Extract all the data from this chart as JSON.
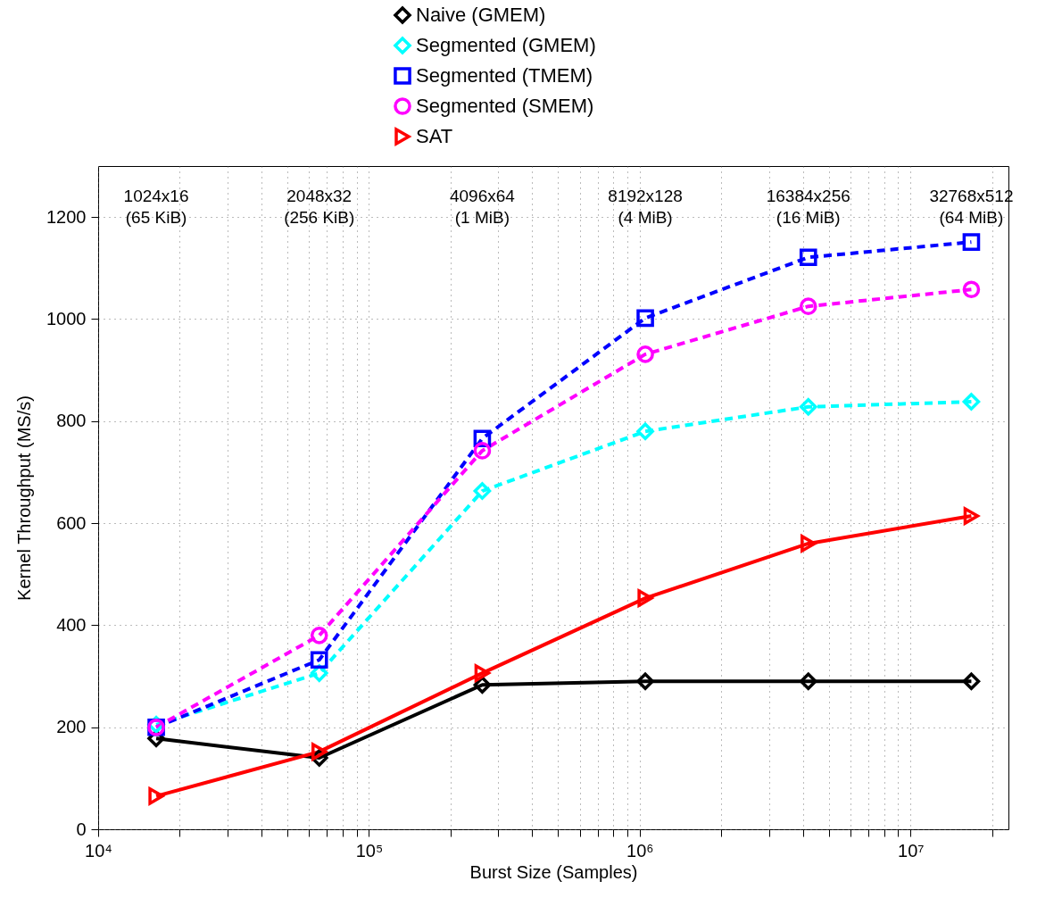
{
  "chart_data": {
    "type": "line",
    "xlabel": "Burst Size (Samples)",
    "ylabel": "Kernel Throughput (MS/s)",
    "x": [
      16384,
      65536,
      262144,
      1048576,
      4194304,
      16777216
    ],
    "series": [
      {
        "name": "Naive (GMEM)",
        "color": "#000000",
        "marker": "diamond",
        "line_style": "solid",
        "values": [
          178,
          140,
          283,
          290,
          290,
          290
        ]
      },
      {
        "name": "Segmented (GMEM)",
        "color": "#00ffff",
        "marker": "diamond",
        "line_style": "dashed",
        "values": [
          205,
          306,
          663,
          780,
          828,
          838
        ]
      },
      {
        "name": "Segmented (TMEM)",
        "color": "#0000ff",
        "marker": "square",
        "line_style": "dashed",
        "values": [
          200,
          332,
          766,
          1002,
          1121,
          1151
        ]
      },
      {
        "name": "Segmented (SMEM)",
        "color": "#ff00ff",
        "marker": "circle",
        "line_style": "dashed",
        "values": [
          200,
          380,
          742,
          931,
          1025,
          1058
        ]
      },
      {
        "name": "SAT",
        "color": "#ff0000",
        "marker": "triangle",
        "line_style": "solid",
        "values": [
          65,
          152,
          306,
          453,
          560,
          614
        ]
      }
    ],
    "annotations": [
      "1024x16\n(65 KiB)",
      "2048x32\n(256 KiB)",
      "4096x64\n(1 MiB)",
      "8192x128\n(4 MiB)",
      "16384x256\n(16 MiB)",
      "32768x512\n(64 MiB)"
    ],
    "log": "x",
    "xlim": [
      10000,
      23000000
    ],
    "xticks": [
      {
        "value": 10000,
        "label": "10⁴"
      },
      {
        "value": 20000,
        "label": null
      },
      {
        "value": 30000,
        "label": null
      },
      {
        "value": 40000,
        "label": null
      },
      {
        "value": 50000,
        "label": null
      },
      {
        "value": 60000,
        "label": null
      },
      {
        "value": 70000,
        "label": null
      },
      {
        "value": 80000,
        "label": null
      },
      {
        "value": 90000,
        "label": null
      },
      {
        "value": 100000,
        "label": "10⁵"
      },
      {
        "value": 200000,
        "label": null
      },
      {
        "value": 300000,
        "label": null
      },
      {
        "value": 400000,
        "label": null
      },
      {
        "value": 500000,
        "label": null
      },
      {
        "value": 600000,
        "label": null
      },
      {
        "value": 700000,
        "label": null
      },
      {
        "value": 800000,
        "label": null
      },
      {
        "value": 900000,
        "label": null
      },
      {
        "value": 1000000,
        "label": "10⁶"
      },
      {
        "value": 2000000,
        "label": null
      },
      {
        "value": 3000000,
        "label": null
      },
      {
        "value": 4000000,
        "label": null
      },
      {
        "value": 5000000,
        "label": null
      },
      {
        "value": 6000000,
        "label": null
      },
      {
        "value": 7000000,
        "label": null
      },
      {
        "value": 8000000,
        "label": null
      },
      {
        "value": 9000000,
        "label": null
      },
      {
        "value": 10000000,
        "label": "10⁷"
      },
      {
        "value": 20000000,
        "label": null
      }
    ],
    "ylim": [
      0,
      1300
    ],
    "yticks": [
      0,
      200,
      400,
      600,
      800,
      1000,
      1200
    ],
    "grid": true,
    "legend": "top"
  }
}
